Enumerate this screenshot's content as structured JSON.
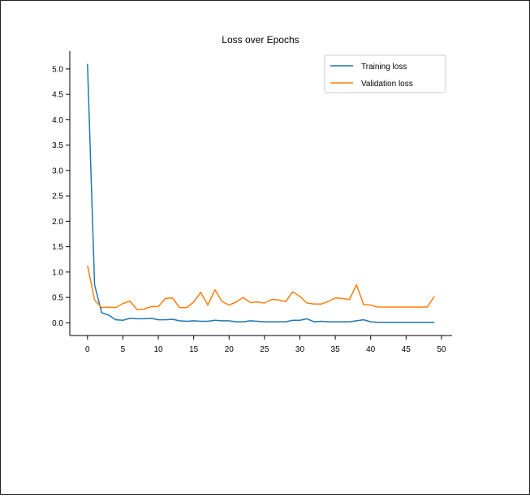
{
  "chart_data": {
    "type": "line",
    "title": "Loss over Epochs",
    "xlabel": "",
    "ylabel": "",
    "xlim": [
      -2.5,
      51.5
    ],
    "ylim": [
      -0.25,
      5.35
    ],
    "x_ticks": [
      0,
      5,
      10,
      15,
      20,
      25,
      30,
      35,
      40,
      45,
      50
    ],
    "y_ticks": [
      0.0,
      0.5,
      1.0,
      1.5,
      2.0,
      2.5,
      3.0,
      3.5,
      4.0,
      4.5,
      5.0
    ],
    "x_tick_labels": [
      "0",
      "5",
      "10",
      "15",
      "20",
      "25",
      "30",
      "35",
      "40",
      "45",
      "50"
    ],
    "y_tick_labels": [
      "0.0",
      "0.5",
      "1.0",
      "1.5",
      "2.0",
      "2.5",
      "3.0",
      "3.5",
      "4.0",
      "4.5",
      "5.0"
    ],
    "grid": false,
    "legend_position": "top-right",
    "x": [
      0,
      1,
      2,
      3,
      4,
      5,
      6,
      7,
      8,
      9,
      10,
      11,
      12,
      13,
      14,
      15,
      16,
      17,
      18,
      19,
      20,
      21,
      22,
      23,
      24,
      25,
      26,
      27,
      28,
      29,
      30,
      31,
      32,
      33,
      34,
      35,
      36,
      37,
      38,
      39,
      40,
      41,
      42,
      43,
      44,
      45,
      46,
      47,
      48,
      49
    ],
    "series": [
      {
        "name": "Training loss",
        "color": "#1f77b4",
        "values": [
          5.1,
          0.75,
          0.2,
          0.15,
          0.06,
          0.05,
          0.09,
          0.08,
          0.08,
          0.09,
          0.06,
          0.06,
          0.07,
          0.04,
          0.03,
          0.04,
          0.03,
          0.03,
          0.05,
          0.04,
          0.04,
          0.02,
          0.02,
          0.04,
          0.03,
          0.02,
          0.02,
          0.02,
          0.02,
          0.05,
          0.05,
          0.08,
          0.02,
          0.03,
          0.02,
          0.02,
          0.02,
          0.02,
          0.04,
          0.06,
          0.02,
          0.01,
          0.01,
          0.01,
          0.01,
          0.01,
          0.01,
          0.01,
          0.01,
          0.01
        ]
      },
      {
        "name": "Validation loss",
        "color": "#ff7f0e",
        "values": [
          1.13,
          0.45,
          0.3,
          0.31,
          0.3,
          0.38,
          0.43,
          0.26,
          0.27,
          0.32,
          0.32,
          0.48,
          0.49,
          0.3,
          0.3,
          0.41,
          0.6,
          0.35,
          0.65,
          0.42,
          0.35,
          0.41,
          0.5,
          0.4,
          0.41,
          0.39,
          0.46,
          0.45,
          0.42,
          0.61,
          0.52,
          0.39,
          0.37,
          0.37,
          0.42,
          0.49,
          0.48,
          0.46,
          0.75,
          0.36,
          0.35,
          0.31,
          0.31,
          0.31,
          0.31,
          0.31,
          0.31,
          0.31,
          0.31,
          0.52
        ]
      }
    ]
  }
}
